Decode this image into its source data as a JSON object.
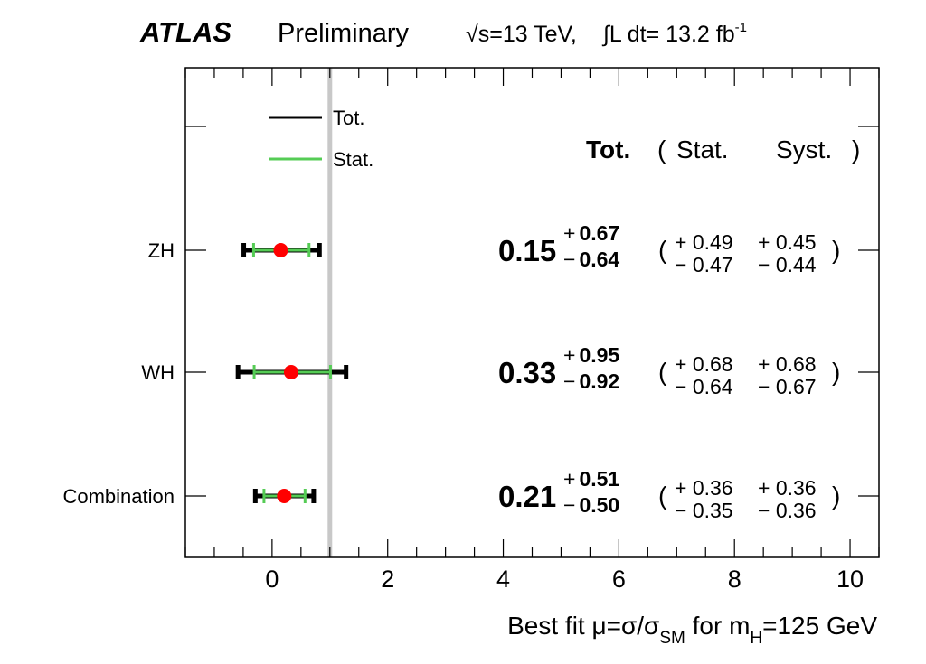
{
  "header": {
    "experiment": "ATLAS",
    "status": "Preliminary",
    "energy": "√s=13 TeV,",
    "lumi_prefix": "∫L dt= 13.2 fb",
    "lumi_exp": "-1"
  },
  "chart_data": {
    "type": "forest",
    "xlabel_parts": [
      "Best fit μ=σ/σ",
      "SM",
      " for m",
      "H",
      "=125 GeV"
    ],
    "xlim": [
      -1.5,
      10.5
    ],
    "xticks": [
      "0",
      "2",
      "4",
      "6",
      "8",
      "10"
    ],
    "reference_line": 1,
    "legend": {
      "placement": "top-left",
      "entries": [
        "Tot.",
        "Stat."
      ]
    },
    "column_headers": {
      "tot": "Tot.",
      "open": "(",
      "stat": "Stat.",
      "syst": "Syst.",
      "close": ")"
    },
    "colors": {
      "tot": "#000000",
      "stat": "#55cc55",
      "point": "#ff0000",
      "reference": "#c8c8c8"
    },
    "rows": [
      {
        "label": "ZH",
        "mu": "0.15",
        "tot_up": "0.67",
        "tot_dn": "0.64",
        "stat_up": "0.49",
        "stat_dn": "0.47",
        "syst_up": "0.45",
        "syst_dn": "0.44"
      },
      {
        "label": "WH",
        "mu": "0.33",
        "tot_up": "0.95",
        "tot_dn": "0.92",
        "stat_up": "0.68",
        "stat_dn": "0.64",
        "syst_up": "0.68",
        "syst_dn": "0.67"
      },
      {
        "label": "Combination",
        "mu": "0.21",
        "tot_up": "0.51",
        "tot_dn": "0.50",
        "stat_up": "0.36",
        "stat_dn": "0.35",
        "syst_up": "0.36",
        "syst_dn": "0.36"
      }
    ]
  }
}
